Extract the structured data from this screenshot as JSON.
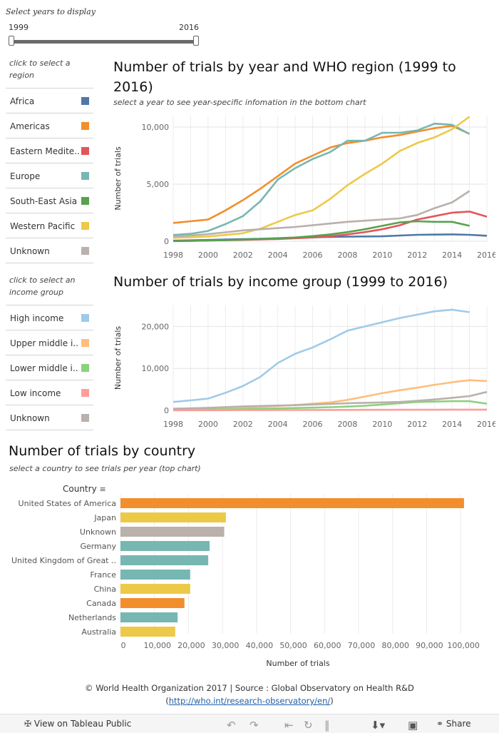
{
  "slider": {
    "label": "Select years to display",
    "min_label": "1999",
    "max_label": "2016"
  },
  "region_legend": {
    "hint": "click to select a region",
    "items": [
      {
        "label": "Africa",
        "color": "#4e79a7"
      },
      {
        "label": "Americas",
        "color": "#f28e2b"
      },
      {
        "label": "Eastern Medite..",
        "color": "#e15759"
      },
      {
        "label": "Europe",
        "color": "#76b7b2"
      },
      {
        "label": "South-East Asia",
        "color": "#59a14f"
      },
      {
        "label": "Western Pacific",
        "color": "#edc948"
      },
      {
        "label": "Unknown",
        "color": "#bab0ac"
      }
    ]
  },
  "income_legend": {
    "hint": "click to select an income group",
    "items": [
      {
        "label": "High income",
        "color": "#a0cbe8"
      },
      {
        "label": "Upper middle i..",
        "color": "#ffbe7d"
      },
      {
        "label": "Lower middle i..",
        "color": "#8cd17d"
      },
      {
        "label": "Low income",
        "color": "#ff9d9a"
      },
      {
        "label": "Unknown",
        "color": "#bab0ac"
      }
    ]
  },
  "region_chart": {
    "title": "Number  of trials by year and WHO region (1999 to 2016)",
    "subtitle": "select a year to see year-specific infomation in  the bottom chart"
  },
  "income_chart": {
    "title": "Number of trials by income group (1999 to 2016)"
  },
  "country_chart": {
    "title": "Number of trials by country",
    "subtitle": "select a country to see trials per year (top chart)",
    "column_header": "Country",
    "xlabel": "Number of trials"
  },
  "chart_data": [
    {
      "type": "line",
      "ylabel": "Number of trials",
      "x": [
        1998,
        1999,
        2000,
        2001,
        2002,
        2003,
        2004,
        2005,
        2006,
        2007,
        2008,
        2009,
        2010,
        2011,
        2012,
        2013,
        2014,
        2015,
        2016
      ],
      "x_ticks": [
        "1998",
        "2000",
        "2002",
        "2004",
        "2006",
        "2008",
        "2010",
        "2012",
        "2014",
        "2016"
      ],
      "y_ticks": [
        "0",
        "5,000",
        "10,000"
      ],
      "ylim": [
        0,
        11000
      ],
      "grid": true,
      "series": [
        {
          "name": "Africa",
          "color": "#4e79a7",
          "values": [
            50,
            80,
            110,
            150,
            180,
            220,
            260,
            300,
            340,
            380,
            400,
            420,
            430,
            500,
            560,
            580,
            600,
            560,
            480
          ]
        },
        {
          "name": "Americas",
          "color": "#f28e2b",
          "values": [
            1600,
            1750,
            1900,
            2700,
            3600,
            4600,
            5700,
            6800,
            7500,
            8200,
            8600,
            8800,
            9100,
            9300,
            9600,
            9900,
            10100,
            9400,
            null
          ]
        },
        {
          "name": "Eastern Medite..",
          "color": "#e15759",
          "values": [
            20,
            40,
            60,
            90,
            120,
            160,
            200,
            260,
            330,
            430,
            600,
            800,
            1050,
            1400,
            1900,
            2200,
            2500,
            2600,
            2150
          ]
        },
        {
          "name": "Europe",
          "color": "#76b7b2",
          "values": [
            550,
            650,
            900,
            1500,
            2200,
            3500,
            5400,
            6400,
            7200,
            7800,
            8800,
            8800,
            9500,
            9500,
            9700,
            10300,
            10200,
            9400,
            null
          ]
        },
        {
          "name": "South-East Asia",
          "color": "#59a14f",
          "values": [
            10,
            30,
            60,
            100,
            150,
            200,
            260,
            330,
            450,
            600,
            800,
            1050,
            1350,
            1650,
            1750,
            1700,
            1700,
            1350,
            null
          ]
        },
        {
          "name": "Western Pacific",
          "color": "#edc948",
          "values": [
            300,
            350,
            420,
            550,
            700,
            1100,
            1700,
            2300,
            2700,
            3700,
            4900,
            5900,
            6800,
            7900,
            8600,
            9100,
            9800,
            10900,
            null
          ]
        },
        {
          "name": "Unknown",
          "color": "#bab0ac",
          "values": [
            400,
            500,
            620,
            780,
            950,
            1050,
            1150,
            1250,
            1400,
            1550,
            1700,
            1800,
            1900,
            2000,
            2300,
            2900,
            3400,
            4400,
            null
          ]
        }
      ]
    },
    {
      "type": "line",
      "ylabel": "Number of trials",
      "x": [
        1998,
        1999,
        2000,
        2001,
        2002,
        2003,
        2004,
        2005,
        2006,
        2007,
        2008,
        2009,
        2010,
        2011,
        2012,
        2013,
        2014,
        2015,
        2016
      ],
      "x_ticks": [
        "1998",
        "2000",
        "2002",
        "2004",
        "2006",
        "2008",
        "2010",
        "2012",
        "2014",
        "2016"
      ],
      "y_ticks": [
        "0",
        "10,000",
        "20,000"
      ],
      "ylim": [
        0,
        25000
      ],
      "grid": true,
      "series": [
        {
          "name": "High income",
          "color": "#a0cbe8",
          "values": [
            2000,
            2400,
            2800,
            4200,
            5800,
            8000,
            11300,
            13500,
            15000,
            16900,
            19000,
            20000,
            21000,
            22000,
            22800,
            23600,
            24000,
            23400,
            null
          ]
        },
        {
          "name": "Upper middle i..",
          "color": "#ffbe7d",
          "values": [
            300,
            380,
            460,
            560,
            700,
            850,
            1050,
            1300,
            1600,
            1900,
            2500,
            3300,
            4100,
            4800,
            5400,
            6100,
            6700,
            7200,
            7000
          ]
        },
        {
          "name": "Lower middle i..",
          "color": "#8cd17d",
          "values": [
            100,
            150,
            200,
            260,
            330,
            400,
            480,
            560,
            650,
            760,
            900,
            1100,
            1400,
            1700,
            2000,
            2100,
            2200,
            2200,
            1600
          ]
        },
        {
          "name": "Low income",
          "color": "#ff9d9a",
          "values": [
            20,
            30,
            40,
            50,
            60,
            70,
            80,
            90,
            100,
            110,
            120,
            130,
            140,
            150,
            160,
            170,
            180,
            190,
            180
          ]
        },
        {
          "name": "Unknown",
          "color": "#bab0ac",
          "values": [
            400,
            500,
            620,
            780,
            950,
            1050,
            1150,
            1250,
            1400,
            1550,
            1700,
            1800,
            1900,
            2000,
            2300,
            2600,
            3000,
            3400,
            4400
          ]
        }
      ]
    },
    {
      "type": "bar",
      "orientation": "horizontal",
      "xlabel": "Number of trials",
      "x_ticks": [
        "0",
        "10,000",
        "20,000",
        "30,000",
        "40,000",
        "50,000",
        "60,000",
        "70,000",
        "80,000",
        "90,000",
        "100,000"
      ],
      "xlim": [
        0,
        105000
      ],
      "categories": [
        "United States of America",
        "Japan",
        "Unknown",
        "Germany",
        "United Kingdom of Great ..",
        "France",
        "China",
        "Canada",
        "Netherlands",
        "Australia"
      ],
      "values": [
        101000,
        31000,
        30500,
        26200,
        25800,
        20500,
        20500,
        18800,
        16800,
        16100
      ],
      "colors": [
        "#f28e2b",
        "#edc948",
        "#bab0ac",
        "#76b7b2",
        "#76b7b2",
        "#76b7b2",
        "#edc948",
        "#f28e2b",
        "#76b7b2",
        "#edc948"
      ]
    }
  ],
  "footer_note": {
    "credit": "© World Health Organization 2017 | Source : Global Observatory on Health R&D",
    "link": "http://who.int/research-observatory/en/"
  },
  "toolbar": {
    "view_label": "View on Tableau Public",
    "share_label": "Share",
    "view_icon": "tableau-icon",
    "undo_icon": "undo-icon",
    "redo_icon": "redo-icon",
    "revert_icon": "revert-icon",
    "download_icon": "download-icon",
    "fullscreen_icon": "fullscreen-icon",
    "share_icon": "share-icon"
  }
}
